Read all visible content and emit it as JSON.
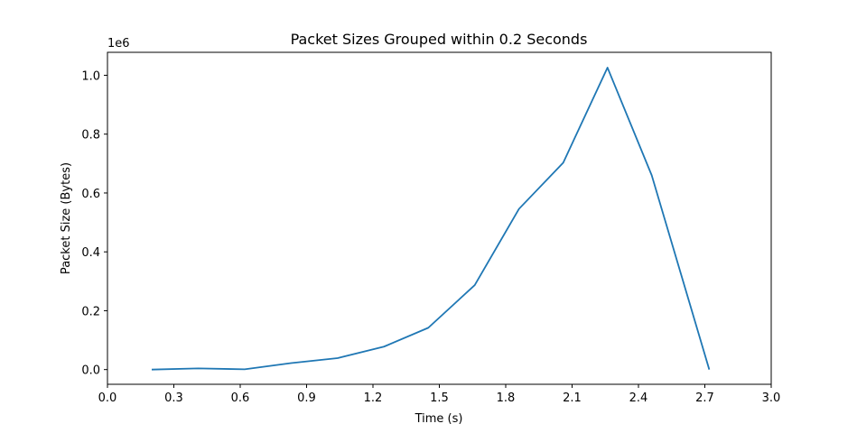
{
  "chart_data": {
    "type": "line",
    "title": "Packet Sizes Grouped within 0.2 Seconds",
    "xlabel": "Time (s)",
    "ylabel": "Packet Size (Bytes)",
    "y_offset_label": "1e6",
    "xlim": [
      0.0,
      3.0
    ],
    "ylim": [
      -0.05,
      1.078
    ],
    "xticks": [
      0.0,
      0.3,
      0.6,
      0.9,
      1.2,
      1.5,
      1.8,
      2.1,
      2.4,
      2.7,
      3.0
    ],
    "xtick_labels": [
      "0.0",
      "0.3",
      "0.6",
      "0.9",
      "1.2",
      "1.5",
      "1.8",
      "2.1",
      "2.4",
      "2.7",
      "3.0"
    ],
    "yticks": [
      0.0,
      0.2,
      0.4,
      0.6,
      0.8,
      1.0
    ],
    "ytick_labels": [
      "0.0",
      "0.2",
      "0.4",
      "0.6",
      "0.8",
      "1.0"
    ],
    "grid": false,
    "series": [
      {
        "color": "#1f77b4",
        "x": [
          0.2,
          0.41,
          0.62,
          0.83,
          1.04,
          1.25,
          1.45,
          1.66,
          1.86,
          2.06,
          2.26,
          2.46,
          2.72
        ],
        "y": [
          0.0,
          0.004,
          0.001,
          0.022,
          0.039,
          0.078,
          0.142,
          0.287,
          0.546,
          0.703,
          1.026,
          0.66,
          0.0
        ]
      }
    ]
  }
}
